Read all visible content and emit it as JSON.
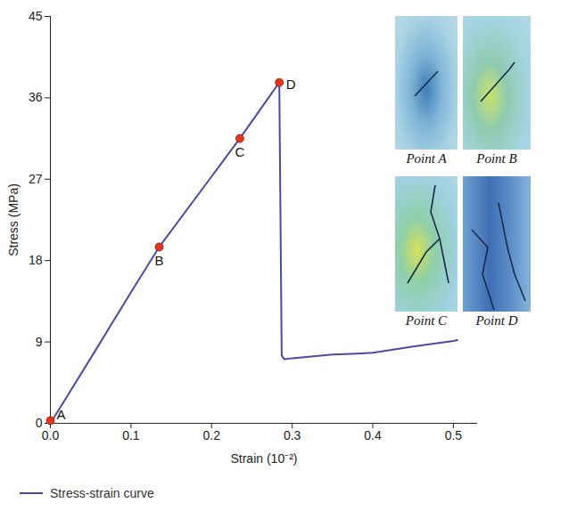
{
  "chart_data": {
    "type": "line",
    "x_label": "Strain (10⁻²)",
    "y_label": "Stress (MPa)",
    "x": [
      0,
      0.05,
      0.1,
      0.135,
      0.2,
      0.235,
      0.284,
      0.287,
      0.29,
      0.3,
      0.35,
      0.38,
      0.4,
      0.45,
      0.5,
      0.505
    ],
    "series": [
      {
        "name": "Stress-strain curve",
        "color": "#4b4ba6",
        "values": [
          0,
          7.2,
          14.5,
          19.5,
          27.3,
          31.5,
          37.7,
          7.5,
          7.1,
          7.2,
          7.6,
          7.7,
          7.8,
          8.5,
          9.1,
          9.2
        ]
      }
    ],
    "xlim": [
      0,
      0.53
    ],
    "ylim": [
      0,
      45
    ],
    "xticks": [
      {
        "value": 0,
        "label": "0.0"
      },
      0.1,
      0.2,
      0.3,
      0.4,
      0.5
    ],
    "yticks": [
      0,
      9,
      18,
      27,
      36,
      45
    ],
    "grid": false,
    "legend": "bottom",
    "annotations": [
      {
        "text": "A",
        "x": 0,
        "y": 0.3,
        "color": "#e8341c"
      },
      {
        "text": "B",
        "x": 0.135,
        "y": 19.5,
        "color": "#e8341c"
      },
      {
        "text": "C",
        "x": 0.235,
        "y": 31.5,
        "color": "#e8341c"
      },
      {
        "text": "D",
        "x": 0.284,
        "y": 37.7,
        "color": "#e8341c"
      }
    ],
    "inset_labels": [
      "Point A",
      "Point B",
      "Point C",
      "Point D"
    ]
  }
}
